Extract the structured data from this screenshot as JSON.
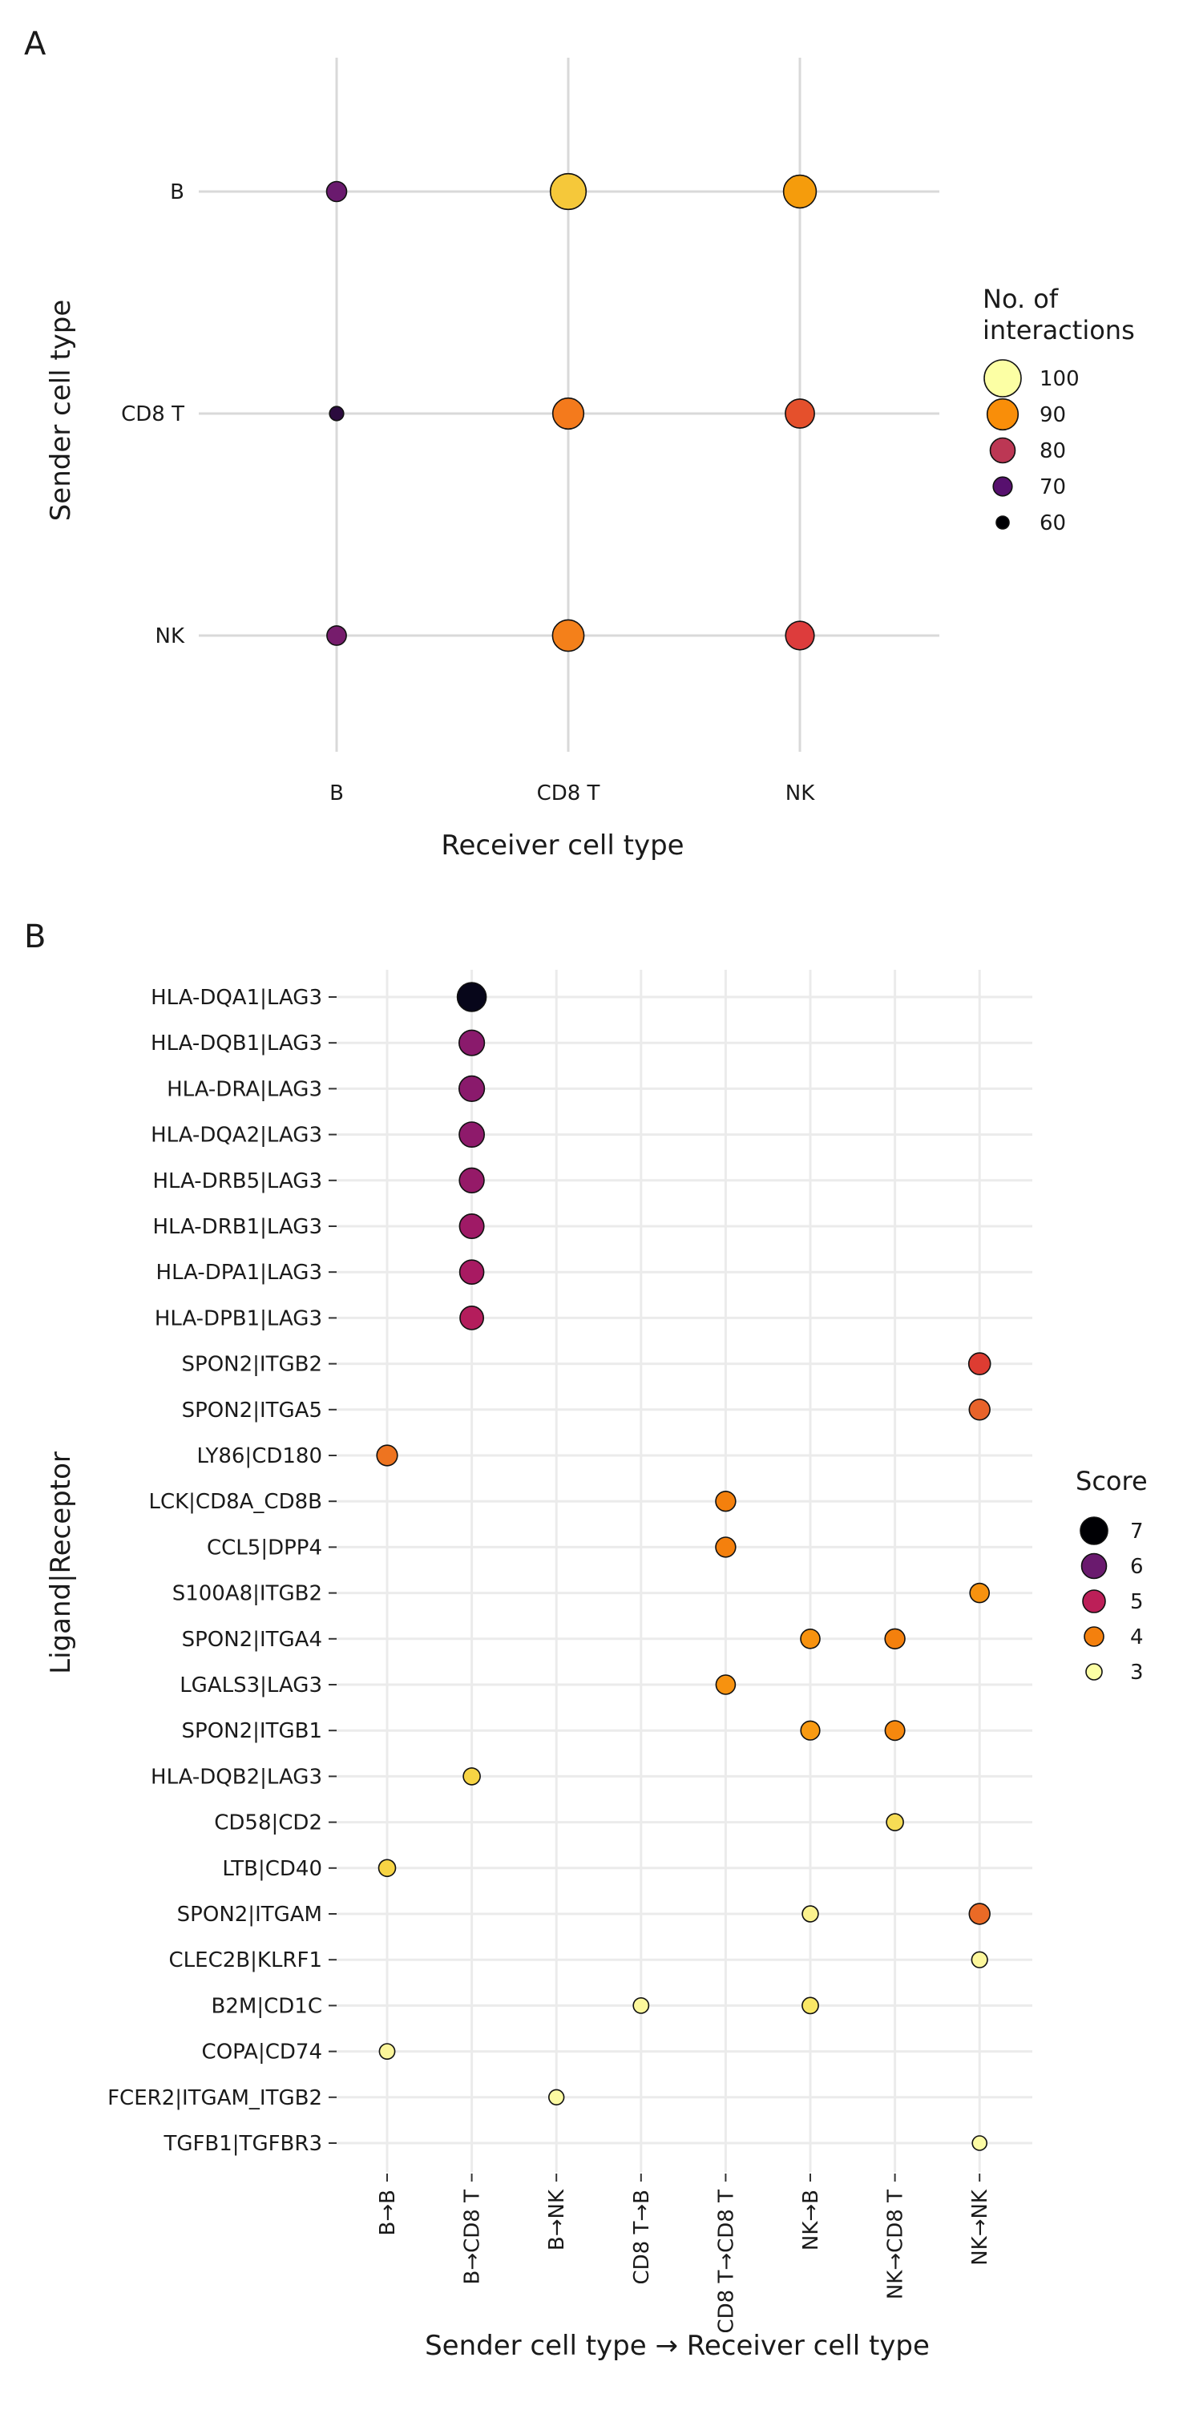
{
  "chart_data": [
    {
      "panel": "A",
      "type": "scatter",
      "x_categories": [
        "B",
        "CD8 T",
        "NK"
      ],
      "y_categories": [
        "B",
        "CD8 T",
        "NK"
      ],
      "xlabel": "Receiver cell type",
      "ylabel": "Sender cell type",
      "grid": true,
      "legend": {
        "title_lines": [
          "No. of",
          "interactions"
        ],
        "placement": "right",
        "entries": [
          {
            "label": "100",
            "value": 100,
            "color": "#fcffa4"
          },
          {
            "label": "90",
            "value": 90,
            "color": "#f98e09"
          },
          {
            "label": "80",
            "value": 80,
            "color": "#bc3754"
          },
          {
            "label": "70",
            "value": 70,
            "color": "#57106e"
          },
          {
            "label": "60",
            "value": 60,
            "color": "#000004"
          }
        ]
      },
      "points": [
        {
          "sender": "B",
          "receiver": "B",
          "value": 72,
          "color": "#6a1a6e"
        },
        {
          "sender": "B",
          "receiver": "CD8 T",
          "value": 98,
          "color": "#f5c83a"
        },
        {
          "sender": "B",
          "receiver": "NK",
          "value": 93,
          "color": "#f59c0c"
        },
        {
          "sender": "CD8 T",
          "receiver": "B",
          "value": 62,
          "color": "#2b0b3e"
        },
        {
          "sender": "CD8 T",
          "receiver": "CD8 T",
          "value": 90,
          "color": "#f47a1c"
        },
        {
          "sender": "CD8 T",
          "receiver": "NK",
          "value": 87,
          "color": "#e5502c"
        },
        {
          "sender": "NK",
          "receiver": "B",
          "value": 71,
          "color": "#761c6c"
        },
        {
          "sender": "NK",
          "receiver": "CD8 T",
          "value": 91,
          "color": "#f4801a"
        },
        {
          "sender": "NK",
          "receiver": "NK",
          "value": 86,
          "color": "#dd3c3c"
        }
      ]
    },
    {
      "panel": "B",
      "type": "scatter",
      "x_categories": [
        "B→B",
        "B→CD8 T",
        "B→NK",
        "CD8 T→B",
        "CD8 T→CD8 T",
        "NK→B",
        "NK→CD8 T",
        "NK→NK"
      ],
      "y_categories": [
        "HLA-DQA1|LAG3",
        "HLA-DQB1|LAG3",
        "HLA-DRA|LAG3",
        "HLA-DQA2|LAG3",
        "HLA-DRB5|LAG3",
        "HLA-DRB1|LAG3",
        "HLA-DPA1|LAG3",
        "HLA-DPB1|LAG3",
        "SPON2|ITGB2",
        "SPON2|ITGA5",
        "LY86|CD180",
        "LCK|CD8A_CD8B",
        "CCL5|DPP4",
        "S100A8|ITGB2",
        "SPON2|ITGA4",
        "LGALS3|LAG3",
        "SPON2|ITGB1",
        "HLA-DQB2|LAG3",
        "CD58|CD2",
        "LTB|CD40",
        "SPON2|ITGAM",
        "CLEC2B|KLRF1",
        "B2M|CD1C",
        "COPA|CD74",
        "FCER2|ITGAM_ITGB2",
        "TGFB1|TGFBR3"
      ],
      "xlabel": "Sender cell type → Receiver cell type",
      "ylabel": "Ligand|Receptor",
      "grid": true,
      "legend": {
        "title_lines": [
          "Score"
        ],
        "placement": "right",
        "entries": [
          {
            "label": "7",
            "value": 7,
            "color": "#000004"
          },
          {
            "label": "6",
            "value": 6,
            "color": "#6a1a6e"
          },
          {
            "label": "5",
            "value": 5,
            "color": "#bc1f58"
          },
          {
            "label": "4",
            "value": 4,
            "color": "#f4800d"
          },
          {
            "label": "3",
            "value": 3,
            "color": "#fcffa4"
          }
        ]
      },
      "points": [
        {
          "pair": "HLA-DQA1|LAG3",
          "x": "B→CD8 T",
          "score": 7.0,
          "color": "#07061a"
        },
        {
          "pair": "HLA-DQB1|LAG3",
          "x": "B→CD8 T",
          "score": 5.8,
          "color": "#8a1a6c"
        },
        {
          "pair": "HLA-DRA|LAG3",
          "x": "B→CD8 T",
          "score": 5.8,
          "color": "#8a1a6c"
        },
        {
          "pair": "HLA-DQA2|LAG3",
          "x": "B→CD8 T",
          "score": 5.7,
          "color": "#8e1a6b"
        },
        {
          "pair": "HLA-DRB5|LAG3",
          "x": "B→CD8 T",
          "score": 5.6,
          "color": "#951a68"
        },
        {
          "pair": "HLA-DRB1|LAG3",
          "x": "B→CD8 T",
          "score": 5.5,
          "color": "#9f1a66"
        },
        {
          "pair": "HLA-DPA1|LAG3",
          "x": "B→CD8 T",
          "score": 5.4,
          "color": "#a81a62"
        },
        {
          "pair": "HLA-DPB1|LAG3",
          "x": "B→CD8 T",
          "score": 5.2,
          "color": "#b41d5c"
        },
        {
          "pair": "SPON2|ITGB2",
          "x": "NK→NK",
          "score": 4.6,
          "color": "#dd3c32"
        },
        {
          "pair": "SPON2|ITGA5",
          "x": "NK→NK",
          "score": 4.3,
          "color": "#e8632a"
        },
        {
          "pair": "LY86|CD180",
          "x": "B→B",
          "score": 4.2,
          "color": "#ee7420"
        },
        {
          "pair": "LCK|CD8A_CD8B",
          "x": "CD8 T→CD8 T",
          "score": 4.0,
          "color": "#f4800d"
        },
        {
          "pair": "CCL5|DPP4",
          "x": "CD8 T→CD8 T",
          "score": 4.0,
          "color": "#f4800d"
        },
        {
          "pair": "S100A8|ITGB2",
          "x": "NK→NK",
          "score": 3.8,
          "color": "#f7920f"
        },
        {
          "pair": "SPON2|ITGA4",
          "x": "NK→B",
          "score": 3.8,
          "color": "#f7920f"
        },
        {
          "pair": "SPON2|ITGA4",
          "x": "NK→CD8 T",
          "score": 4.0,
          "color": "#f4800d"
        },
        {
          "pair": "LGALS3|LAG3",
          "x": "CD8 T→CD8 T",
          "score": 3.8,
          "color": "#f7920f"
        },
        {
          "pair": "SPON2|ITGB1",
          "x": "NK→B",
          "score": 3.7,
          "color": "#f89a12"
        },
        {
          "pair": "SPON2|ITGB1",
          "x": "NK→CD8 T",
          "score": 3.9,
          "color": "#f6880e"
        },
        {
          "pair": "HLA-DQB2|LAG3",
          "x": "B→CD8 T",
          "score": 3.0,
          "color": "#f7d444"
        },
        {
          "pair": "CD58|CD2",
          "x": "NK→CD8 T",
          "score": 3.0,
          "color": "#f6dc55"
        },
        {
          "pair": "LTB|CD40",
          "x": "B→B",
          "score": 3.0,
          "color": "#f7d444"
        },
        {
          "pair": "SPON2|ITGAM",
          "x": "NK→B",
          "score": 2.7,
          "color": "#fbf28e"
        },
        {
          "pair": "SPON2|ITGAM",
          "x": "NK→NK",
          "score": 4.3,
          "color": "#ea6a26"
        },
        {
          "pair": "CLEC2B|KLRF1",
          "x": "NK→NK",
          "score": 2.6,
          "color": "#fcf79c"
        },
        {
          "pair": "B2M|CD1C",
          "x": "CD8 T→B",
          "score": 2.5,
          "color": "#fcf79c"
        },
        {
          "pair": "B2M|CD1C",
          "x": "NK→B",
          "score": 2.8,
          "color": "#f9e766"
        },
        {
          "pair": "COPA|CD74",
          "x": "B→B",
          "score": 2.5,
          "color": "#fbf59a"
        },
        {
          "pair": "FCER2|ITGAM_ITGB2",
          "x": "B→NK",
          "score": 2.4,
          "color": "#fcfaa2"
        },
        {
          "pair": "TGFB1|TGFBR3",
          "x": "NK→NK",
          "score": 2.2,
          "color": "#fcfba4"
        }
      ]
    }
  ]
}
